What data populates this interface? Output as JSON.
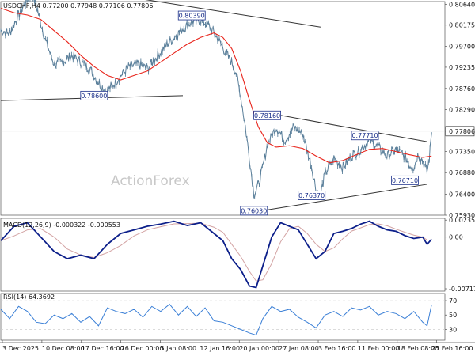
{
  "colors": {
    "price": "#5a7f9a",
    "ma": "#e8241b",
    "macd": "#0c1f8a",
    "signal": "#d3a3a3",
    "rsi": "#3a7fd6",
    "trendline": "#333333",
    "annotation_border": "#1a2f8a",
    "annotation_text": "#1a2f8a",
    "current_box_bg": "#ffffff",
    "grid_h": "#e6e6e6",
    "rsi_level": "#cfcfcf"
  },
  "header": {
    "title": "USDCHF,H4  0.77200 0.77948 0.77106 0.77806"
  },
  "watermark": "ActionForex",
  "price_panel": {
    "y_ticks": [
      "0.80640",
      "0.80175",
      "0.79700",
      "0.79235",
      "0.78760",
      "0.78290",
      "0.77806",
      "0.77350",
      "0.76880",
      "0.76400",
      "0.75930"
    ],
    "current_price_label": "0.77806",
    "annotations": [
      {
        "label": "0.80390",
        "t": 0.43,
        "v": 0.8039
      },
      {
        "label": "0.78600",
        "t": 0.21,
        "v": 0.786
      },
      {
        "label": "0.78160",
        "t": 0.6,
        "v": 0.7816
      },
      {
        "label": "0.77710",
        "t": 0.82,
        "v": 0.7771
      },
      {
        "label": "0.76710",
        "t": 0.91,
        "v": 0.7671
      },
      {
        "label": "0.76370",
        "t": 0.7,
        "v": 0.7637
      },
      {
        "label": "0.76030",
        "t": 0.57,
        "v": 0.7603
      }
    ],
    "trendlines": [
      {
        "t1": 0.0,
        "v1": 0.8125,
        "t2": 0.72,
        "v2": 0.8013
      },
      {
        "t1": 0.0,
        "v1": 0.7849,
        "t2": 0.41,
        "v2": 0.786
      },
      {
        "t1": 0.63,
        "v1": 0.7816,
        "t2": 0.96,
        "v2": 0.7757
      },
      {
        "t1": 0.57,
        "v1": 0.76,
        "t2": 0.96,
        "v2": 0.7662
      }
    ]
  },
  "macd_panel": {
    "label": "MACD(12,26,9) -0.000322 -0.000553",
    "y_ticks": [
      "0.002357",
      "0.00",
      "-0.007172"
    ]
  },
  "rsi_panel": {
    "label": "RSI(14) 64.3692",
    "y_ticks": [
      "70",
      "50",
      "30"
    ]
  },
  "x_axis": {
    "labels": [
      "3 Dec 2025",
      "10 Dec 08:00",
      "17 Dec 16:00",
      "26 Dec 00:00",
      "5 Jan 08:00",
      "12 Jan 16:00",
      "20 Jan 00:00",
      "27 Jan 08:00",
      "3 Feb 16:00",
      "11 Feb 00:00",
      "18 Feb 08:00",
      "25 Feb 16:00"
    ]
  },
  "chart_data": {
    "type": "line",
    "title": "USDCHF,H4  0.77200 0.77948 0.77106 0.77806",
    "x_labels": [
      "3 Dec 2025",
      "10 Dec 08:00",
      "17 Dec 16:00",
      "26 Dec 00:00",
      "5 Jan 08:00",
      "12 Jan 16:00",
      "20 Jan 00:00",
      "27 Jan 08:00",
      "3 Feb 16:00",
      "11 Feb 00:00",
      "18 Feb 08:00",
      "25 Feb 16:00"
    ],
    "series": [
      {
        "name": "USDCHF",
        "points": [
          [
            0.0,
            0.8005
          ],
          [
            0.02,
            0.8
          ],
          [
            0.04,
            0.804
          ],
          [
            0.06,
            0.8075
          ],
          [
            0.07,
            0.809
          ],
          [
            0.08,
            0.806
          ],
          [
            0.1,
            0.7985
          ],
          [
            0.12,
            0.793
          ],
          [
            0.14,
            0.7935
          ],
          [
            0.16,
            0.795
          ],
          [
            0.18,
            0.7935
          ],
          [
            0.2,
            0.792
          ],
          [
            0.22,
            0.789
          ],
          [
            0.235,
            0.787
          ],
          [
            0.25,
            0.788
          ],
          [
            0.27,
            0.7905
          ],
          [
            0.29,
            0.7925
          ],
          [
            0.31,
            0.793
          ],
          [
            0.33,
            0.792
          ],
          [
            0.35,
            0.7945
          ],
          [
            0.37,
            0.797
          ],
          [
            0.39,
            0.799
          ],
          [
            0.41,
            0.801
          ],
          [
            0.43,
            0.8025
          ],
          [
            0.45,
            0.803
          ],
          [
            0.47,
            0.8015
          ],
          [
            0.49,
            0.7985
          ],
          [
            0.51,
            0.795
          ],
          [
            0.52,
            0.7935
          ],
          [
            0.53,
            0.791
          ],
          [
            0.54,
            0.786
          ],
          [
            0.55,
            0.7795
          ],
          [
            0.56,
            0.772
          ],
          [
            0.57,
            0.764
          ],
          [
            0.58,
            0.766
          ],
          [
            0.59,
            0.77
          ],
          [
            0.6,
            0.775
          ],
          [
            0.62,
            0.779
          ],
          [
            0.64,
            0.776
          ],
          [
            0.66,
            0.779
          ],
          [
            0.68,
            0.7775
          ],
          [
            0.7,
            0.77
          ],
          [
            0.71,
            0.765
          ],
          [
            0.72,
            0.764
          ],
          [
            0.73,
            0.7685
          ],
          [
            0.75,
            0.772
          ],
          [
            0.77,
            0.77
          ],
          [
            0.79,
            0.7725
          ],
          [
            0.81,
            0.774
          ],
          [
            0.83,
            0.776
          ],
          [
            0.85,
            0.7745
          ],
          [
            0.87,
            0.7725
          ],
          [
            0.89,
            0.774
          ],
          [
            0.91,
            0.7725
          ],
          [
            0.92,
            0.7705
          ],
          [
            0.93,
            0.77
          ],
          [
            0.94,
            0.773
          ],
          [
            0.95,
            0.7715
          ],
          [
            0.96,
            0.769
          ],
          [
            0.965,
            0.772
          ],
          [
            0.97,
            0.7781
          ]
        ]
      },
      {
        "name": "Moving average",
        "points": [
          [
            0.0,
            0.8055
          ],
          [
            0.03,
            0.8045
          ],
          [
            0.06,
            0.804
          ],
          [
            0.09,
            0.803
          ],
          [
            0.12,
            0.8005
          ],
          [
            0.15,
            0.798
          ],
          [
            0.18,
            0.795
          ],
          [
            0.21,
            0.7925
          ],
          [
            0.24,
            0.7905
          ],
          [
            0.27,
            0.7895
          ],
          [
            0.3,
            0.7905
          ],
          [
            0.33,
            0.7915
          ],
          [
            0.36,
            0.7935
          ],
          [
            0.39,
            0.7955
          ],
          [
            0.42,
            0.7975
          ],
          [
            0.45,
            0.799
          ],
          [
            0.48,
            0.8
          ],
          [
            0.5,
            0.799
          ],
          [
            0.52,
            0.7965
          ],
          [
            0.54,
            0.7915
          ],
          [
            0.56,
            0.785
          ],
          [
            0.58,
            0.779
          ],
          [
            0.6,
            0.7755
          ],
          [
            0.62,
            0.7745
          ],
          [
            0.65,
            0.7748
          ],
          [
            0.68,
            0.7742
          ],
          [
            0.71,
            0.7725
          ],
          [
            0.74,
            0.771
          ],
          [
            0.77,
            0.7715
          ],
          [
            0.8,
            0.7728
          ],
          [
            0.83,
            0.774
          ],
          [
            0.86,
            0.7742
          ],
          [
            0.89,
            0.7735
          ],
          [
            0.92,
            0.7728
          ],
          [
            0.95,
            0.7722
          ],
          [
            0.97,
            0.7725
          ]
        ]
      },
      {
        "name": "MACD",
        "points": [
          [
            0.0,
            -0.0005
          ],
          [
            0.03,
            0.0015
          ],
          [
            0.06,
            0.002
          ],
          [
            0.09,
            0.0
          ],
          [
            0.12,
            -0.002
          ],
          [
            0.15,
            -0.003
          ],
          [
            0.18,
            -0.0025
          ],
          [
            0.21,
            -0.003
          ],
          [
            0.24,
            -0.001
          ],
          [
            0.27,
            0.0005
          ],
          [
            0.3,
            0.001
          ],
          [
            0.33,
            0.0015
          ],
          [
            0.36,
            0.0018
          ],
          [
            0.39,
            0.0022
          ],
          [
            0.42,
            0.0016
          ],
          [
            0.45,
            0.002
          ],
          [
            0.48,
            0.0005
          ],
          [
            0.5,
            -0.0005
          ],
          [
            0.52,
            -0.003
          ],
          [
            0.54,
            -0.0045
          ],
          [
            0.56,
            -0.0068
          ],
          [
            0.575,
            -0.007
          ],
          [
            0.59,
            -0.004
          ],
          [
            0.61,
            0.0
          ],
          [
            0.63,
            0.002
          ],
          [
            0.65,
            0.0015
          ],
          [
            0.67,
            0.001
          ],
          [
            0.69,
            -0.001
          ],
          [
            0.71,
            -0.003
          ],
          [
            0.73,
            -0.002
          ],
          [
            0.75,
            0.0005
          ],
          [
            0.77,
            0.0008
          ],
          [
            0.79,
            0.0012
          ],
          [
            0.81,
            0.0018
          ],
          [
            0.83,
            0.0022
          ],
          [
            0.85,
            0.0015
          ],
          [
            0.87,
            0.001
          ],
          [
            0.89,
            0.0008
          ],
          [
            0.91,
            0.0002
          ],
          [
            0.93,
            -0.0002
          ],
          [
            0.95,
            0.0
          ],
          [
            0.96,
            -0.001
          ],
          [
            0.97,
            -0.0003
          ]
        ]
      },
      {
        "name": "RSI",
        "points": [
          [
            0.0,
            58
          ],
          [
            0.02,
            45
          ],
          [
            0.04,
            62
          ],
          [
            0.06,
            55
          ],
          [
            0.08,
            40
          ],
          [
            0.1,
            38
          ],
          [
            0.12,
            50
          ],
          [
            0.14,
            45
          ],
          [
            0.16,
            52
          ],
          [
            0.18,
            40
          ],
          [
            0.2,
            48
          ],
          [
            0.22,
            35
          ],
          [
            0.24,
            60
          ],
          [
            0.26,
            55
          ],
          [
            0.28,
            52
          ],
          [
            0.3,
            58
          ],
          [
            0.32,
            47
          ],
          [
            0.34,
            62
          ],
          [
            0.36,
            55
          ],
          [
            0.38,
            65
          ],
          [
            0.4,
            50
          ],
          [
            0.42,
            62
          ],
          [
            0.44,
            48
          ],
          [
            0.46,
            60
          ],
          [
            0.48,
            42
          ],
          [
            0.5,
            40
          ],
          [
            0.52,
            35
          ],
          [
            0.54,
            30
          ],
          [
            0.56,
            25
          ],
          [
            0.575,
            22
          ],
          [
            0.59,
            45
          ],
          [
            0.61,
            62
          ],
          [
            0.63,
            55
          ],
          [
            0.65,
            58
          ],
          [
            0.67,
            47
          ],
          [
            0.69,
            40
          ],
          [
            0.71,
            32
          ],
          [
            0.73,
            50
          ],
          [
            0.75,
            55
          ],
          [
            0.77,
            48
          ],
          [
            0.79,
            60
          ],
          [
            0.81,
            57
          ],
          [
            0.83,
            62
          ],
          [
            0.85,
            50
          ],
          [
            0.87,
            55
          ],
          [
            0.89,
            52
          ],
          [
            0.91,
            45
          ],
          [
            0.93,
            55
          ],
          [
            0.95,
            40
          ],
          [
            0.96,
            35
          ],
          [
            0.97,
            64.37
          ]
        ]
      }
    ],
    "ylim_price": [
      0.7593,
      0.807
    ],
    "ylim_macd": [
      -0.0075,
      0.0026
    ],
    "ylim_rsi": [
      15,
      80
    ],
    "grid": false,
    "legend": "none"
  }
}
